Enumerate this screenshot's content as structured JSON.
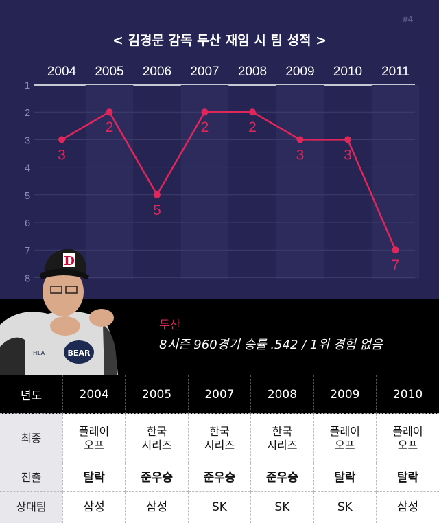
{
  "page_number": "#4",
  "chart_data": {
    "type": "line",
    "title": "< 김경문 감독 두산 재임 시 팀 성적 >",
    "categories": [
      "2004",
      "2005",
      "2006",
      "2007",
      "2008",
      "2009",
      "2010",
      "2011"
    ],
    "series": [
      {
        "values": [
          3,
          2,
          5,
          2,
          2,
          3,
          3,
          7
        ]
      }
    ],
    "y_ticks": [
      "1",
      "2",
      "3",
      "4",
      "5",
      "6",
      "7",
      "8"
    ],
    "ylim": [
      1,
      8
    ],
    "y_inverted": true,
    "xlabel": "",
    "ylabel": "",
    "grid": true,
    "line_color": "#e0275b",
    "background_color": "#252452"
  },
  "profile": {
    "team": "두산",
    "record": "8시즌 960경기 승률 .542 / 1위 경험 없음"
  },
  "table": {
    "header": [
      "년도",
      "2004",
      "2005",
      "2007",
      "2008",
      "2009",
      "2010"
    ],
    "rows": [
      {
        "label": "최종",
        "cells": [
          [
            "플레이",
            "오프"
          ],
          [
            "한국",
            "시리즈"
          ],
          [
            "한국",
            "시리즈"
          ],
          [
            "한국",
            "시리즈"
          ],
          [
            "플레이",
            "오프"
          ],
          [
            "플레이",
            "오프"
          ]
        ]
      },
      {
        "label": "진출",
        "cells": [
          "탈락",
          "준우승",
          "준우승",
          "준우승",
          "탈락",
          "탈락"
        ]
      },
      {
        "label": "상대팀",
        "cells": [
          "삼성",
          "삼성",
          "SK",
          "SK",
          "SK",
          "삼성"
        ]
      }
    ]
  },
  "colors": {
    "accent": "#e0275b",
    "navy": "#252452",
    "table_header": "#000000"
  }
}
